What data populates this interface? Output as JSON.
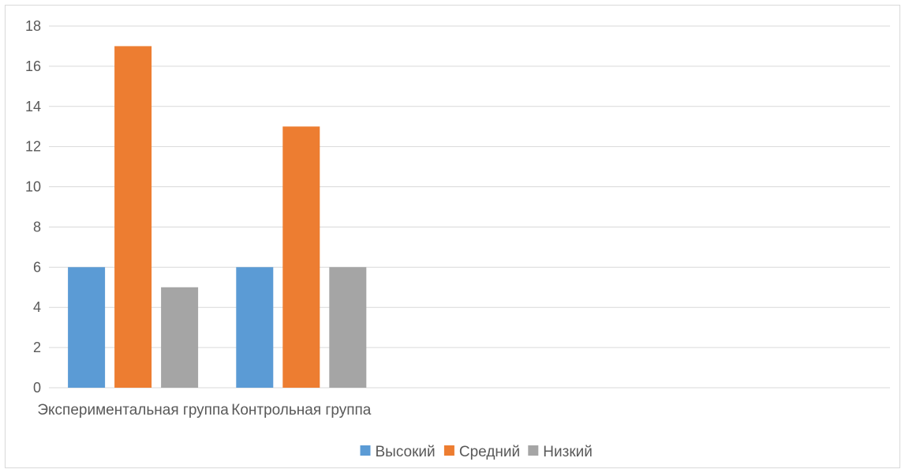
{
  "chart_data": {
    "type": "bar",
    "categories": [
      "Экспериментальная группа",
      "Контрольная группа",
      "",
      "",
      ""
    ],
    "series": [
      {
        "name": "Высокий",
        "values": [
          6,
          6,
          null,
          null,
          null
        ],
        "color": "#5B9BD5"
      },
      {
        "name": "Средний",
        "values": [
          17,
          13,
          null,
          null,
          null
        ],
        "color": "#ED7D31"
      },
      {
        "name": "Низкий",
        "values": [
          5,
          6,
          null,
          null,
          null
        ],
        "color": "#A5A5A5"
      }
    ],
    "ylim": [
      0,
      18
    ],
    "yticks": [
      0,
      2,
      4,
      6,
      8,
      10,
      12,
      14,
      16,
      18
    ],
    "grid": true,
    "legend": "bottom"
  }
}
